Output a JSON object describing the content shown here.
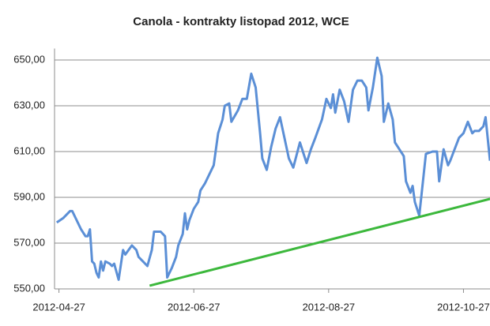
{
  "chart_data": {
    "type": "line",
    "title": "Canola - kontrakty listopad 2012, WCE",
    "x": [
      "2012-04-26",
      "2012-04-29",
      "2012-05-02",
      "2012-05-03",
      "2012-05-05",
      "2012-05-07",
      "2012-05-09",
      "2012-05-10",
      "2012-05-11",
      "2012-05-12",
      "2012-05-13",
      "2012-05-14",
      "2012-05-15",
      "2012-05-16",
      "2012-05-17",
      "2012-05-18",
      "2012-05-20",
      "2012-05-21",
      "2012-05-22",
      "2012-05-24",
      "2012-05-26",
      "2012-05-27",
      "2012-05-30",
      "2012-06-01",
      "2012-06-02",
      "2012-06-04",
      "2012-06-06",
      "2012-06-08",
      "2012-06-09",
      "2012-06-12",
      "2012-06-14",
      "2012-06-15",
      "2012-06-17",
      "2012-06-19",
      "2012-06-20",
      "2012-06-22",
      "2012-06-23",
      "2012-06-24",
      "2012-06-25",
      "2012-06-27",
      "2012-06-29",
      "2012-06-30",
      "2012-07-02",
      "2012-07-04",
      "2012-07-06",
      "2012-07-08",
      "2012-07-10",
      "2012-07-11",
      "2012-07-13",
      "2012-07-14",
      "2012-07-17",
      "2012-07-19",
      "2012-07-21",
      "2012-07-23",
      "2012-07-25",
      "2012-07-27",
      "2012-07-28",
      "2012-07-30",
      "2012-08-01",
      "2012-08-03",
      "2012-08-05",
      "2012-08-07",
      "2012-08-09",
      "2012-08-11",
      "2012-08-14",
      "2012-08-15",
      "2012-08-17",
      "2012-08-19",
      "2012-08-21",
      "2012-08-24",
      "2012-08-26",
      "2012-08-28",
      "2012-08-29",
      "2012-08-30",
      "2012-09-01",
      "2012-09-03",
      "2012-09-05",
      "2012-09-07",
      "2012-09-09",
      "2012-09-11",
      "2012-09-13",
      "2012-09-14",
      "2012-09-16",
      "2012-09-18",
      "2012-09-20",
      "2012-09-21",
      "2012-09-23",
      "2012-09-25",
      "2012-09-26",
      "2012-09-28",
      "2012-09-30",
      "2012-10-01",
      "2012-10-03",
      "2012-10-04",
      "2012-10-05",
      "2012-10-07",
      "2012-10-09",
      "2012-10-10",
      "2012-10-13",
      "2012-10-15",
      "2012-10-16",
      "2012-10-18",
      "2012-10-20",
      "2012-10-21",
      "2012-10-23",
      "2012-10-25",
      "2012-10-27",
      "2012-10-29",
      "2012-10-31",
      "2012-11-01",
      "2012-11-03",
      "2012-11-05",
      "2012-11-06",
      "2012-11-08"
    ],
    "series": [
      {
        "color": "#5b8fd6",
        "values": [
          579,
          581,
          584,
          584,
          580,
          576,
          573,
          573,
          576,
          562,
          561,
          557,
          555,
          562,
          558,
          562,
          561,
          560,
          561,
          554,
          567,
          565,
          569,
          567,
          564,
          562,
          560,
          567,
          575,
          575,
          573,
          555,
          559,
          564,
          569,
          574,
          583,
          576,
          580,
          585,
          588,
          593,
          596,
          600,
          604,
          618,
          624,
          630,
          631,
          623,
          628,
          633,
          633,
          644,
          638,
          618,
          607,
          602,
          612,
          620,
          625,
          616,
          607,
          603,
          614,
          611,
          605,
          611,
          616,
          624,
          633,
          629,
          635,
          627,
          637,
          632,
          623,
          637,
          641,
          641,
          638,
          628,
          638,
          651,
          643,
          623,
          631,
          624,
          614,
          611,
          608,
          597,
          592,
          595,
          588,
          582,
          600,
          609,
          610,
          610,
          597,
          611,
          604,
          606,
          611,
          616,
          618,
          623,
          618,
          619,
          619,
          621,
          625,
          606
        ]
      }
    ],
    "trendline": {
      "color": "#3cb83c",
      "x": [
        "2012-06-07",
        "2012-11-08"
      ],
      "values": [
        551.4,
        589.3
      ]
    },
    "xlim": [
      "2012-04-25",
      "2012-11-08"
    ],
    "xticks": [
      "2012-04-27",
      "2012-06-27",
      "2012-08-27",
      "2012-10-27"
    ],
    "ylim": [
      550,
      655
    ],
    "yticks": [
      {
        "value": 550,
        "label": "550,00"
      },
      {
        "value": 570,
        "label": "570,00"
      },
      {
        "value": 590,
        "label": "590,00"
      },
      {
        "value": 610,
        "label": "610,00"
      },
      {
        "value": 630,
        "label": "630,00"
      },
      {
        "value": 650,
        "label": "650,00"
      }
    ],
    "grid": true
  }
}
